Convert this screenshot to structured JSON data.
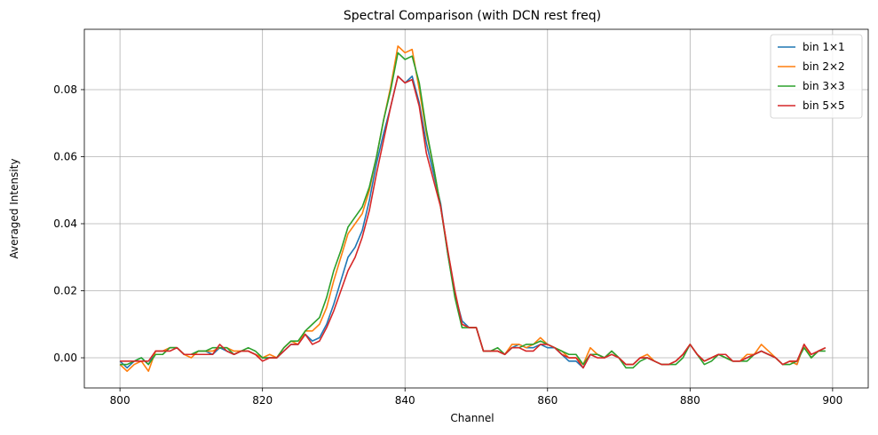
{
  "chart_data": {
    "type": "line",
    "title": "Spectral Comparison (with DCN rest freq)",
    "xlabel": "Channel",
    "ylabel": "Averaged Intensity",
    "xlim": [
      795,
      905
    ],
    "ylim": [
      -0.009,
      0.098
    ],
    "xticks": [
      800,
      820,
      840,
      860,
      880,
      900
    ],
    "yticks": [
      0.0,
      0.02,
      0.04,
      0.06,
      0.08
    ],
    "xtick_labels": [
      "800",
      "820",
      "840",
      "860",
      "880",
      "900"
    ],
    "ytick_labels": [
      "0.00",
      "0.02",
      "0.04",
      "0.06",
      "0.08"
    ],
    "grid": true,
    "legend_position": "top-right",
    "x_start": 800,
    "x_step": 1,
    "series": [
      {
        "name": "bin 1×1",
        "color": "#1f77b4",
        "values": [
          -0.001,
          -0.003,
          -0.001,
          0.0,
          -0.002,
          0.002,
          0.002,
          0.003,
          0.003,
          0.001,
          0.001,
          0.002,
          0.002,
          0.001,
          0.003,
          0.002,
          0.001,
          0.002,
          0.002,
          0.001,
          0.0,
          0.0,
          0.0,
          0.002,
          0.004,
          0.004,
          0.007,
          0.005,
          0.006,
          0.01,
          0.016,
          0.023,
          0.03,
          0.033,
          0.038,
          0.047,
          0.058,
          0.067,
          0.075,
          0.084,
          0.082,
          0.084,
          0.076,
          0.064,
          0.055,
          0.046,
          0.031,
          0.019,
          0.011,
          0.009,
          0.009,
          0.002,
          0.002,
          0.002,
          0.001,
          0.003,
          0.004,
          0.003,
          0.003,
          0.004,
          0.003,
          0.003,
          0.001,
          -0.001,
          -0.001,
          -0.003,
          0.001,
          0.001,
          0.0,
          0.002,
          0.0,
          -0.002,
          -0.002,
          0.0,
          0.0,
          -0.001,
          -0.002,
          -0.002,
          -0.001,
          0.001,
          0.004,
          0.001,
          -0.001,
          0.0,
          0.001,
          0.0,
          -0.001,
          -0.001,
          0.0,
          0.001,
          0.002,
          0.001,
          0.0,
          -0.002,
          -0.001,
          -0.002,
          0.004,
          0.0,
          0.002,
          0.003
        ]
      },
      {
        "name": "bin 2×2",
        "color": "#ff7f0e",
        "values": [
          -0.002,
          -0.004,
          -0.002,
          -0.001,
          -0.004,
          0.002,
          0.002,
          0.003,
          0.003,
          0.001,
          0.0,
          0.002,
          0.002,
          0.002,
          0.003,
          0.003,
          0.002,
          0.002,
          0.002,
          0.001,
          0.0,
          0.001,
          0.0,
          0.003,
          0.005,
          0.004,
          0.008,
          0.008,
          0.01,
          0.015,
          0.023,
          0.03,
          0.037,
          0.04,
          0.043,
          0.05,
          0.06,
          0.071,
          0.081,
          0.093,
          0.091,
          0.092,
          0.08,
          0.067,
          0.057,
          0.045,
          0.032,
          0.019,
          0.01,
          0.009,
          0.009,
          0.002,
          0.002,
          0.002,
          0.001,
          0.004,
          0.004,
          0.003,
          0.004,
          0.006,
          0.004,
          0.003,
          0.002,
          0.0,
          0.0,
          -0.002,
          0.003,
          0.001,
          0.0,
          0.002,
          0.0,
          -0.002,
          -0.002,
          0.0,
          0.001,
          -0.001,
          -0.002,
          -0.002,
          -0.001,
          0.001,
          0.004,
          0.001,
          -0.001,
          0.0,
          0.001,
          0.0,
          -0.001,
          -0.001,
          0.001,
          0.001,
          0.004,
          0.002,
          0.0,
          -0.002,
          -0.001,
          -0.002,
          0.004,
          0.0,
          0.002,
          0.003
        ]
      },
      {
        "name": "bin 3×3",
        "color": "#2ca02c",
        "values": [
          -0.002,
          -0.002,
          -0.001,
          0.0,
          -0.002,
          0.001,
          0.001,
          0.003,
          0.003,
          0.001,
          0.001,
          0.002,
          0.002,
          0.003,
          0.003,
          0.003,
          0.001,
          0.002,
          0.003,
          0.002,
          0.0,
          0.0,
          0.0,
          0.003,
          0.005,
          0.005,
          0.008,
          0.01,
          0.012,
          0.018,
          0.026,
          0.032,
          0.039,
          0.042,
          0.045,
          0.051,
          0.06,
          0.071,
          0.08,
          0.091,
          0.089,
          0.09,
          0.082,
          0.068,
          0.057,
          0.045,
          0.031,
          0.018,
          0.009,
          0.009,
          0.009,
          0.002,
          0.002,
          0.003,
          0.001,
          0.003,
          0.003,
          0.004,
          0.004,
          0.005,
          0.004,
          0.003,
          0.002,
          0.001,
          0.001,
          -0.002,
          0.001,
          0.001,
          0.0,
          0.002,
          0.0,
          -0.003,
          -0.003,
          -0.001,
          0.0,
          -0.001,
          -0.002,
          -0.002,
          -0.002,
          0.0,
          0.004,
          0.001,
          -0.002,
          -0.001,
          0.001,
          0.0,
          -0.001,
          -0.001,
          -0.001,
          0.001,
          0.002,
          0.001,
          0.0,
          -0.002,
          -0.002,
          -0.001,
          0.003,
          0.0,
          0.002,
          0.002
        ]
      },
      {
        "name": "bin 5×5",
        "color": "#d62728",
        "values": [
          -0.001,
          -0.001,
          -0.001,
          -0.001,
          -0.001,
          0.002,
          0.002,
          0.002,
          0.003,
          0.001,
          0.001,
          0.001,
          0.001,
          0.001,
          0.004,
          0.002,
          0.001,
          0.002,
          0.002,
          0.001,
          -0.001,
          0.0,
          0.0,
          0.002,
          0.004,
          0.004,
          0.007,
          0.004,
          0.005,
          0.009,
          0.014,
          0.02,
          0.026,
          0.03,
          0.036,
          0.044,
          0.055,
          0.065,
          0.075,
          0.084,
          0.082,
          0.083,
          0.075,
          0.061,
          0.053,
          0.045,
          0.032,
          0.02,
          0.01,
          0.009,
          0.009,
          0.002,
          0.002,
          0.002,
          0.001,
          0.003,
          0.003,
          0.002,
          0.002,
          0.004,
          0.004,
          0.003,
          0.001,
          0.0,
          0.0,
          -0.003,
          0.001,
          0.0,
          0.0,
          0.001,
          0.0,
          -0.002,
          -0.002,
          0.0,
          0.0,
          -0.001,
          -0.002,
          -0.002,
          -0.001,
          0.001,
          0.004,
          0.001,
          -0.001,
          0.0,
          0.001,
          0.001,
          -0.001,
          -0.001,
          0.0,
          0.001,
          0.002,
          0.001,
          0.0,
          -0.002,
          -0.001,
          -0.001,
          0.004,
          0.001,
          0.002,
          0.003
        ]
      }
    ]
  }
}
